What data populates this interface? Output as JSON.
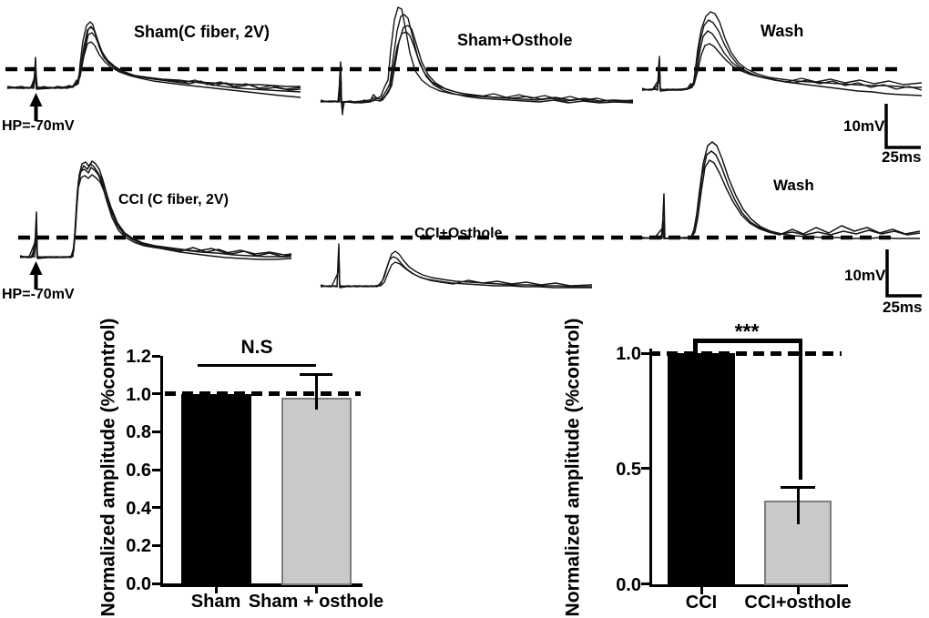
{
  "figure": {
    "panels": {
      "sham": {
        "title": "Sham(C fiber, 2V)",
        "hp_label": "HP=-70mV"
      },
      "sham_osthole": {
        "title": "Sham+Osthole"
      },
      "wash_top": {
        "title": "Wash"
      },
      "cci": {
        "title": "CCI (C fiber, 2V)",
        "hp_label": "HP=-70mV"
      },
      "cci_osthole": {
        "title": "CCI+Osthole"
      },
      "wash_bottom": {
        "title": "Wash"
      }
    },
    "scalebars": {
      "top": {
        "v_label": "10mV",
        "h_label": "25ms"
      },
      "bottom": {
        "v_label": "10mV",
        "h_label": "25ms"
      }
    },
    "traces": {
      "sham": [
        "M8,95 L16,96 L24,95 L31,97 L37,96 L38,80 L39,63 L40,90 L41,97 L48,95 L56,97 L63,95 L70,96 L76,94 L80,95 L84,88 L86,91 L88,70 L91,45 L95,28 L99,24 L102,27 L105,38 L109,52 L114,63 L120,70 L128,76 L138,81 L150,84 L164,86 L180,88 L198,89 L215,90 L232,91 L250,92 L268,93 L285,93 L300,94 L315,95 L330,95",
        "M8,97 L18,96 L26,97 L34,96 L38,85 L39,65 L40,97 L50,96 L60,97 L68,96 L75,95 L80,96 L85,90 L88,78 L92,52 L96,33 L100,30 L104,34 L108,46 L113,60 L119,68 L127,74 L137,79 L148,83 L162,85 L178,87 L196,88 L212,90 L228,92 L245,95 L262,97 L278,98 L295,99 L312,100 L330,101",
        "M8,96 L20,97 L30,96 L37,97 L39,70 L40,96 L52,97 L64,96 L74,97 L80,95 L86,92 L89,75 L93,55 L97,38 L101,36 L105,41 L110,53 L116,64 L123,72 L132,78 L143,82 L156,85 L170,87 L185,89 L200,91 L214,88 L228,93 L242,90 L256,95 L270,92 L284,97 L298,94 L314,98 L330,96",
        "M8,97 L22,96 L32,97 L38,92 L39,68 L40,98 L54,97 L66,96 L78,96 L84,93 L88,84 L92,62 L96,48 L100,46 L104,50 L109,60 L115,68 L122,74 L131,79 L142,83 L154,86 L168,89 L184,91 L200,93 L218,95 L236,97 L254,99 L272,101 L290,103 L308,105 L330,107",
        "M8,96 L25,97 L36,96 L39,75 L41,96 L55,96 L68,97 L79,95 L85,91 L89,72 L93,50 L97,32 L100,29 L103,33 L107,44 L112,57 L118,66 L126,73 L136,79 L148,83 L162,86 L178,88 L194,90 L208,92 L220,89 L234,94 L248,91 L260,96 L274,93 L288,98 L302,96 L318,99 L330,98"
      ],
      "sham_osthole": [
        "M352,110 L360,112 L368,111 L372,112 L373,85 L374,68 L375,112 L376,126 L377,112 L385,111 L393,113 L400,110 L406,112 L410,104 L414,108 L418,106 L422,96 L426,88 L429,55 L433,22 L437,8 L441,10 L445,30 L450,58 L456,78 L463,88 L472,95 L483,100 L496,103 L512,105 L528,106 L545,107 L562,108 L578,106 L594,109 L610,107 L626,110 L642,108 L658,111 L675,110 L695,111",
        "M352,112 L362,111 L371,112 L373,90 L374,70 L375,113 L376,124 L378,112 L388,112 L398,111 L406,110 L412,107 L418,109 L424,100 L428,92 L432,62 L436,34 L440,18 L444,16 L448,20 L453,40 L459,64 L466,80 L474,90 L484,96 L496,100 L510,103 L526,105 L542,107 L558,108 L574,109 L590,110 L606,108 L622,111 L638,109 L654,112 L672,110 L695,112",
        "M352,111 L364,112 L372,111 L374,75 L375,112 L380,112 L390,113 L400,112 L408,111 L414,108 L420,110 L426,102 L430,94 L434,70 L438,46 L443,30 L448,28 L452,32 L457,48 L463,68 L470,82 L478,91 L488,97 L500,101 L514,104 L528,106 L542,103 L556,107 L570,104 L584,108 L598,105 L612,109 L626,106 L640,110 L656,108 L672,112 L695,110",
        "M352,112 L366,111 L373,112 L374,88 L375,115 L376,112 L386,112 L396,113 L406,112 L412,110 L418,111 L424,104 L428,97 L432,74 L436,52 L441,37 L446,35 L450,39 L455,52 L461,70 L468,84 L476,93 L486,99 L498,103 L512,106 L528,108 L544,109 L560,110 L576,111 L592,112 L608,110 L624,113 L640,111 L658,113 L676,112 L695,113"
      ],
      "wash_top": [
        "M705,97 L712,99 L718,98 L722,99 L723,75 L724,62 L725,99 L733,98 L741,99 L749,98 L755,97 L758,92 L761,94 L763,80 L766,55 L770,32 L775,18 L780,13 L785,15 L790,24 L796,42 L803,58 L811,69 L820,76 L831,81 L844,85 L858,87 L874,89 L890,90 L906,91 L922,92 L938,93 L954,94 L970,94 L986,95 L1000,96 L1012,96",
        "M705,99 L714,98 L722,98 L723,80 L724,66 L725,100 L735,99 L745,98 L753,98 L758,95 L762,90 L765,68 L769,44 L773,28 L778,22 L783,25 L789,34 L795,48 L802,61 L810,71 L819,78 L830,83 L843,86 L857,89 L872,91 L886,88 L900,92 L914,89 L928,94 L942,91 L956,96 L970,93 L984,98 L998,95 L1012,99",
        "M705,98 L716,99 L723,88 L724,70 L725,98 L737,99 L747,99 L755,98 L760,96 L764,85 L768,58 L772,40 L777,34 L782,37 L788,46 L795,58 L803,68 L812,75 L822,80 L834,84 L847,87 L862,90 L878,92 L894,94 L910,96 L926,98 L942,100 L958,101 L974,103 L990,104 L1012,105",
        "M705,99 L718,98 L723,92 L724,75 L725,99 L739,98 L749,99 L757,97 L762,93 L766,78 L770,60 L774,50 L779,48 L784,51 L790,58 L797,66 L805,73 L814,78 L824,82 L836,85 L850,88 L864,90 L880,86 L896,90 L912,87 L928,91 L944,88 L960,92 L976,89 L992,93 L1012,91"
      ],
      "cci": [
        "M22,281 L30,283 L38,282 L39,255 L40,233 L41,283 L50,282 L60,283 L70,282 L78,283 L81,275 L83,250 L85,215 L87,192 L90,180 L94,178 L98,183 L101,177 L105,180 L109,186 L113,198 L118,216 L124,236 L131,251 L139,259 L148,264 L159,268 L172,271 L187,273 L203,275 L220,277 L238,278 L256,280 L274,281 L292,282 L320,282",
        "M22,283 L32,282 L39,265 L40,240 L41,284 L52,283 L62,282 L72,283 L80,281 L82,258 L84,225 L86,200 L89,188 L93,186 L97,190 L100,184 L104,187 L108,192 L112,202 L117,220 L123,239 L130,253 L138,261 L147,266 L158,270 L170,272 L184,274 L198,276 L212,272 L226,277 L240,274 L254,279 L268,276 L282,281 L296,278 L310,282 L320,280",
        "M22,282 L34,283 L39,270 L40,248 L41,282 L54,283 L64,283 L74,282 L80,282 L82,262 L84,232 L86,206 L89,195 L93,193 L97,196 L101,192 L105,195 L110,200 L115,212 L121,230 L128,246 L136,257 L145,263 L156,268 L168,271 L182,274 L198,277 L214,279 L230,281 L248,283 L266,284 L284,285 L302,285 L320,284",
        "M22,282 L36,282 L39,260 L41,283 L56,282 L68,283 L78,282 L81,272 L83,246 L85,210 L88,190 L92,182 L96,186 L99,180 L103,183 L107,189 L111,196 L116,210 L122,228 L129,245 L137,256 L146,262 L157,267 L170,270 L185,272 L200,274 L216,276 L232,273 L248,278 L264,275 L280,279 L296,277 L312,280 L320,279"
      ],
      "cci_osthole": [
        "M352,313 L360,315 L368,314 L370,315 L371,290 L372,268 L373,316 L380,315 L390,314 L400,315 L408,314 L414,315 L418,312 L422,304 L426,290 L430,279 L434,276 L438,279 L443,286 L449,293 L456,298 L464,302 L474,305 L486,307 L500,309 L516,310 L532,311 L548,312 L564,313 L580,313 L596,314 L612,314 L628,315 L650,315",
        "M352,315 L362,314 L370,315 L372,280 L373,315 L382,314 L392,315 L402,314 L410,315 L416,313 L420,308 L424,296 L428,285 L432,282 L436,284 L441,290 L447,296 L454,301 L462,305 L472,308 L484,310 L498,312 L514,308 L530,311 L546,309 L562,312 L578,310 L594,313 L610,311 L626,314 L650,313",
        "M352,314 L364,315 L371,300 L372,272 L373,314 L384,315 L394,314 L404,315 L412,314 L418,314 L422,310 L426,300 L430,291 L434,288 L439,290 L445,295 L452,300 L460,304 L470,307 L482,309 L496,311 L512,312 L528,313 L544,314 L560,314 L576,315 L592,315 L608,316 L628,316 L650,316"
      ],
      "wash_bottom": [
        "M705,261 L714,262 L722,261 L727,262 L728,235 L729,213 L730,262 L738,261 L746,262 L754,261 L759,260 L762,252 L765,235 L768,210 L772,180 L777,160 L782,156 L787,160 L793,175 L800,196 L808,215 L816,230 L825,241 L835,249 L846,254 L858,257 L872,259 L888,260 L904,261 L920,261 L936,262 L952,262 L968,261 L984,262 L1010,262",
        "M705,262 L716,261 L726,262 L728,240 L729,262 L740,262 L750,261 L757,261 L761,257 L764,244 L767,222 L771,192 L776,170 L781,166 L786,170 L792,183 L799,202 L807,220 L815,234 L824,244 L834,250 L845,254 L857,257 L870,255 L884,258 L898,255 L912,258 L926,254 L940,257 L954,253 L968,257 L982,254 L996,258 L1010,256",
        "M705,261 L718,262 L728,250 L729,262 L742,261 L752,262 L759,261 L763,255 L766,240 L770,210 L774,184 L779,176 L784,179 L790,190 L797,206 L805,222 L814,236 L823,245 L833,251 L844,255 L856,258 L870,252 L882,257 L896,250 L910,256 L924,248 L938,254 L952,250 L966,256 L980,252 L994,257 L1010,254"
      ]
    }
  },
  "chart_data": [
    {
      "type": "bar",
      "title": "",
      "ylabel": "Normalized amplitude (%control)",
      "xlabel": "",
      "categories": [
        "Sham",
        "Sham + osthole"
      ],
      "values": [
        1.0,
        0.98
      ],
      "errors": [
        0,
        0.12
      ],
      "bar_colors": [
        "#000000",
        "#c9c9c9"
      ],
      "bar_border_colors": [
        "#000000",
        "#7d7d7d"
      ],
      "ylim": [
        0,
        1.2
      ],
      "yticks": [
        0.0,
        0.2,
        0.4,
        0.6,
        0.8,
        1.0,
        1.2
      ],
      "reference_line": 1.0,
      "annotation": "N.S",
      "grid": false,
      "legend": "none"
    },
    {
      "type": "bar",
      "title": "",
      "ylabel": "Normalized amplitude (%control)",
      "xlabel": "",
      "categories": [
        "CCI",
        "CCI+osthole"
      ],
      "values": [
        1.0,
        0.36
      ],
      "errors": [
        0,
        0.06
      ],
      "bar_colors": [
        "#000000",
        "#c9c9c9"
      ],
      "bar_border_colors": [
        "#000000",
        "#7d7d7d"
      ],
      "ylim": [
        0,
        1.05
      ],
      "yticks": [
        0.0,
        0.5,
        1.0
      ],
      "reference_line": 1.0,
      "annotation": "***",
      "grid": false,
      "legend": "none"
    }
  ]
}
